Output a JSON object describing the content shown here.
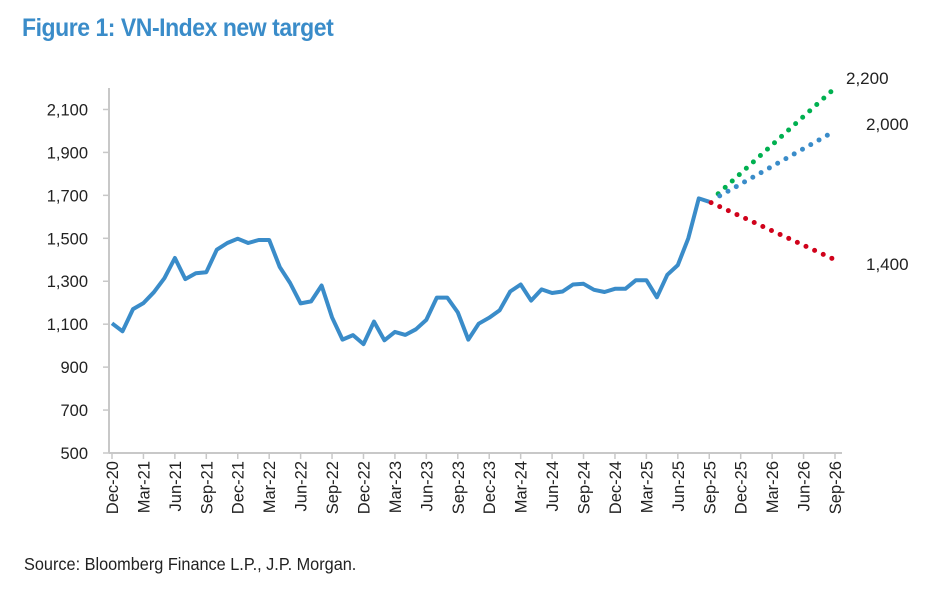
{
  "chart_data": {
    "type": "line",
    "title": "Figure 1: VN-Index new target",
    "source": "Source: Bloomberg Finance L.P., J.P. Morgan.",
    "xlabel": "",
    "ylabel": "",
    "ylim": [
      500,
      2200
    ],
    "yticks": [
      500,
      700,
      900,
      1100,
      1300,
      1500,
      1700,
      1900,
      2100
    ],
    "ytick_labels": [
      "500",
      "700",
      "900",
      "1,100",
      "1,300",
      "1,500",
      "1,700",
      "1,900",
      "2,100"
    ],
    "xtick_labels": [
      "Dec-20",
      "Mar-21",
      "Jun-21",
      "Sep-21",
      "Dec-21",
      "Mar-22",
      "Jun-22",
      "Sep-22",
      "Dec-22",
      "Mar-23",
      "Jun-23",
      "Sep-23",
      "Dec-23",
      "Mar-24",
      "Jun-24",
      "Sep-24",
      "Dec-24",
      "Mar-25",
      "Jun-25",
      "Sep-25",
      "Dec-25",
      "Mar-26",
      "Jun-26",
      "Sep-26"
    ],
    "grid": false,
    "x_start": "Dec-20",
    "x_frequency": "monthly",
    "series": [
      {
        "style": "solid",
        "color": "#3a8cc9",
        "values": [
          1104,
          1067,
          1170,
          1198,
          1249,
          1314,
          1408,
          1310,
          1337,
          1342,
          1447,
          1478,
          1498,
          1478,
          1492,
          1492,
          1367,
          1292,
          1197,
          1206,
          1280,
          1132,
          1028,
          1049,
          1007,
          1112,
          1025,
          1064,
          1050,
          1076,
          1120,
          1224,
          1224,
          1155,
          1028,
          1102,
          1130,
          1165,
          1252,
          1285,
          1210,
          1262,
          1245,
          1252,
          1285,
          1288,
          1260,
          1250,
          1265,
          1265,
          1305,
          1305,
          1225,
          1330,
          1375,
          1500,
          1686,
          1670
        ]
      },
      {
        "style": "dotted",
        "color": "#00b050",
        "start": {
          "x": "Sep-25",
          "y": 1670
        },
        "end": {
          "x": "Sep-26",
          "y": 2200
        },
        "end_label": "2,200"
      },
      {
        "style": "dotted",
        "color": "#3a8cc9",
        "start": {
          "x": "Sep-25",
          "y": 1670
        },
        "end": {
          "x": "Sep-26",
          "y": 2000
        },
        "end_label": "2,000"
      },
      {
        "style": "dotted",
        "color": "#d0021b",
        "start": {
          "x": "Sep-25",
          "y": 1670
        },
        "end": {
          "x": "Sep-26",
          "y": 1400
        },
        "end_label": "1,400"
      }
    ]
  }
}
